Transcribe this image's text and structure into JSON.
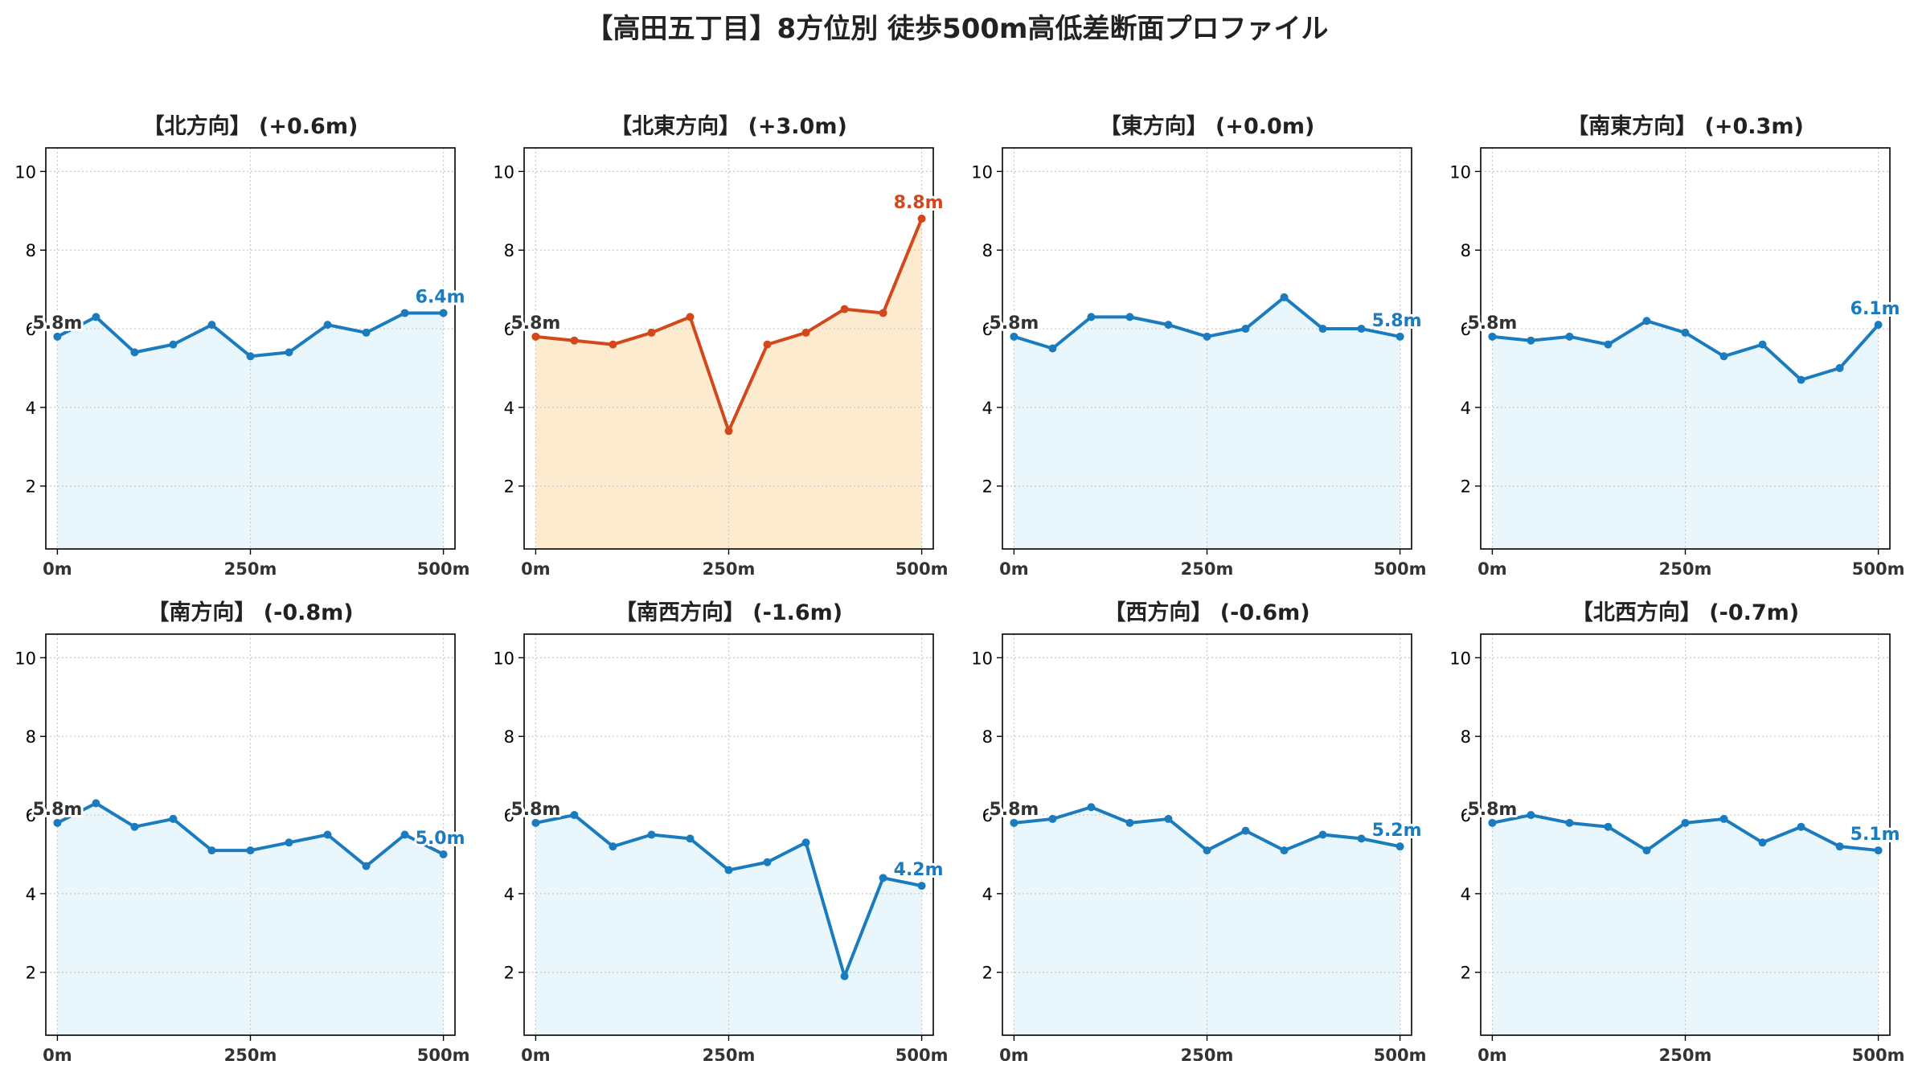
{
  "title": "【高田五丁目】8方位別 徒歩500m高低差断面プロファイル",
  "colors": {
    "normal_line": "#1a7bbf",
    "normal_fill": "#e9f6fc",
    "highlight_line": "#d2481c",
    "highlight_fill": "#fdebd0",
    "start_label": "#333333",
    "grid": "#c8c8c8"
  },
  "chart_data": [
    {
      "type": "area",
      "title": "【北方向】 (+0.6m)",
      "x": [
        0,
        50,
        100,
        150,
        200,
        250,
        300,
        350,
        400,
        450,
        500
      ],
      "values": [
        5.8,
        6.3,
        5.4,
        5.6,
        6.1,
        5.3,
        5.4,
        6.1,
        5.9,
        6.4,
        6.4
      ],
      "xticks": [
        "0m",
        "250m",
        "500m"
      ],
      "yticks": [
        "2",
        "4",
        "6",
        "8",
        "10"
      ],
      "xlim": [
        -15,
        515
      ],
      "ylim": [
        0.4,
        10.6
      ],
      "start_label": "5.8m",
      "end_label": "6.4m",
      "highlight": false,
      "grid": true
    },
    {
      "type": "area",
      "title": "【北東方向】 (+3.0m)",
      "x": [
        0,
        50,
        100,
        150,
        200,
        250,
        300,
        350,
        400,
        450,
        500
      ],
      "values": [
        5.8,
        5.7,
        5.6,
        5.9,
        6.3,
        3.4,
        5.6,
        5.9,
        6.5,
        6.4,
        8.8
      ],
      "xticks": [
        "0m",
        "250m",
        "500m"
      ],
      "yticks": [
        "2",
        "4",
        "6",
        "8",
        "10"
      ],
      "xlim": [
        -15,
        515
      ],
      "ylim": [
        0.4,
        10.6
      ],
      "start_label": "5.8m",
      "end_label": "8.8m",
      "highlight": true,
      "grid": true
    },
    {
      "type": "area",
      "title": "【東方向】 (+0.0m)",
      "x": [
        0,
        50,
        100,
        150,
        200,
        250,
        300,
        350,
        400,
        450,
        500
      ],
      "values": [
        5.8,
        5.5,
        6.3,
        6.3,
        6.1,
        5.8,
        6.0,
        6.8,
        6.0,
        6.0,
        5.8
      ],
      "xticks": [
        "0m",
        "250m",
        "500m"
      ],
      "yticks": [
        "2",
        "4",
        "6",
        "8",
        "10"
      ],
      "xlim": [
        -15,
        515
      ],
      "ylim": [
        0.4,
        10.6
      ],
      "start_label": "5.8m",
      "end_label": "5.8m",
      "highlight": false,
      "grid": true
    },
    {
      "type": "area",
      "title": "【南東方向】 (+0.3m)",
      "x": [
        0,
        50,
        100,
        150,
        200,
        250,
        300,
        350,
        400,
        450,
        500
      ],
      "values": [
        5.8,
        5.7,
        5.8,
        5.6,
        6.2,
        5.9,
        5.3,
        5.6,
        4.7,
        5.0,
        6.1
      ],
      "xticks": [
        "0m",
        "250m",
        "500m"
      ],
      "yticks": [
        "2",
        "4",
        "6",
        "8",
        "10"
      ],
      "xlim": [
        -15,
        515
      ],
      "ylim": [
        0.4,
        10.6
      ],
      "start_label": "5.8m",
      "end_label": "6.1m",
      "highlight": false,
      "grid": true
    },
    {
      "type": "area",
      "title": "【南方向】 (-0.8m)",
      "x": [
        0,
        50,
        100,
        150,
        200,
        250,
        300,
        350,
        400,
        450,
        500
      ],
      "values": [
        5.8,
        6.3,
        5.7,
        5.9,
        5.1,
        5.1,
        5.3,
        5.5,
        4.7,
        5.5,
        5.0
      ],
      "xticks": [
        "0m",
        "250m",
        "500m"
      ],
      "yticks": [
        "2",
        "4",
        "6",
        "8",
        "10"
      ],
      "xlim": [
        -15,
        515
      ],
      "ylim": [
        0.4,
        10.6
      ],
      "start_label": "5.8m",
      "end_label": "5.0m",
      "highlight": false,
      "grid": true
    },
    {
      "type": "area",
      "title": "【南西方向】 (-1.6m)",
      "x": [
        0,
        50,
        100,
        150,
        200,
        250,
        300,
        350,
        400,
        450,
        500
      ],
      "values": [
        5.8,
        6.0,
        5.2,
        5.5,
        5.4,
        4.6,
        4.8,
        5.3,
        1.9,
        4.4,
        4.2
      ],
      "xticks": [
        "0m",
        "250m",
        "500m"
      ],
      "yticks": [
        "2",
        "4",
        "6",
        "8",
        "10"
      ],
      "xlim": [
        -15,
        515
      ],
      "ylim": [
        0.4,
        10.6
      ],
      "start_label": "5.8m",
      "end_label": "4.2m",
      "highlight": false,
      "grid": true
    },
    {
      "type": "area",
      "title": "【西方向】 (-0.6m)",
      "x": [
        0,
        50,
        100,
        150,
        200,
        250,
        300,
        350,
        400,
        450,
        500
      ],
      "values": [
        5.8,
        5.9,
        6.2,
        5.8,
        5.9,
        5.1,
        5.6,
        5.1,
        5.5,
        5.4,
        5.2
      ],
      "xticks": [
        "0m",
        "250m",
        "500m"
      ],
      "yticks": [
        "2",
        "4",
        "6",
        "8",
        "10"
      ],
      "xlim": [
        -15,
        515
      ],
      "ylim": [
        0.4,
        10.6
      ],
      "start_label": "5.8m",
      "end_label": "5.2m",
      "highlight": false,
      "grid": true
    },
    {
      "type": "area",
      "title": "【北西方向】 (-0.7m)",
      "x": [
        0,
        50,
        100,
        150,
        200,
        250,
        300,
        350,
        400,
        450,
        500
      ],
      "values": [
        5.8,
        6.0,
        5.8,
        5.7,
        5.1,
        5.8,
        5.9,
        5.3,
        5.7,
        5.2,
        5.1
      ],
      "xticks": [
        "0m",
        "250m",
        "500m"
      ],
      "yticks": [
        "2",
        "4",
        "6",
        "8",
        "10"
      ],
      "xlim": [
        -15,
        515
      ],
      "ylim": [
        0.4,
        10.6
      ],
      "start_label": "5.8m",
      "end_label": "5.1m",
      "highlight": false,
      "grid": true
    }
  ]
}
